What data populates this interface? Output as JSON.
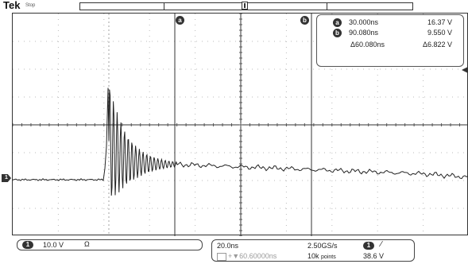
{
  "header": {
    "brand": "Tek",
    "acq_state": "Stop"
  },
  "cursors": {
    "a": {
      "label": "a",
      "time": "30.000ns",
      "volt": "16.37 V"
    },
    "b": {
      "label": "b",
      "time": "90.080ns",
      "volt": "9.550 V"
    },
    "delta": {
      "time": "Δ60.080ns",
      "volt": "Δ6.822 V"
    }
  },
  "channel": {
    "number": "1",
    "scale": "10.0 V",
    "coupling_symbol": "Ω"
  },
  "timebase": {
    "scale": "20.0ns",
    "delay": "+▼60.60000ns",
    "sample_rate": "2.50GS/s",
    "record_length": "10k",
    "record_unit": "points"
  },
  "trigger": {
    "source": "1",
    "slope": "∕",
    "level": "38.6 V"
  },
  "waveform": {
    "color": "#222222",
    "baseline_before_edge_V": -6.5,
    "peak_V": 33,
    "settled_start_V": 0.5,
    "settled_end_V": -4
  }
}
